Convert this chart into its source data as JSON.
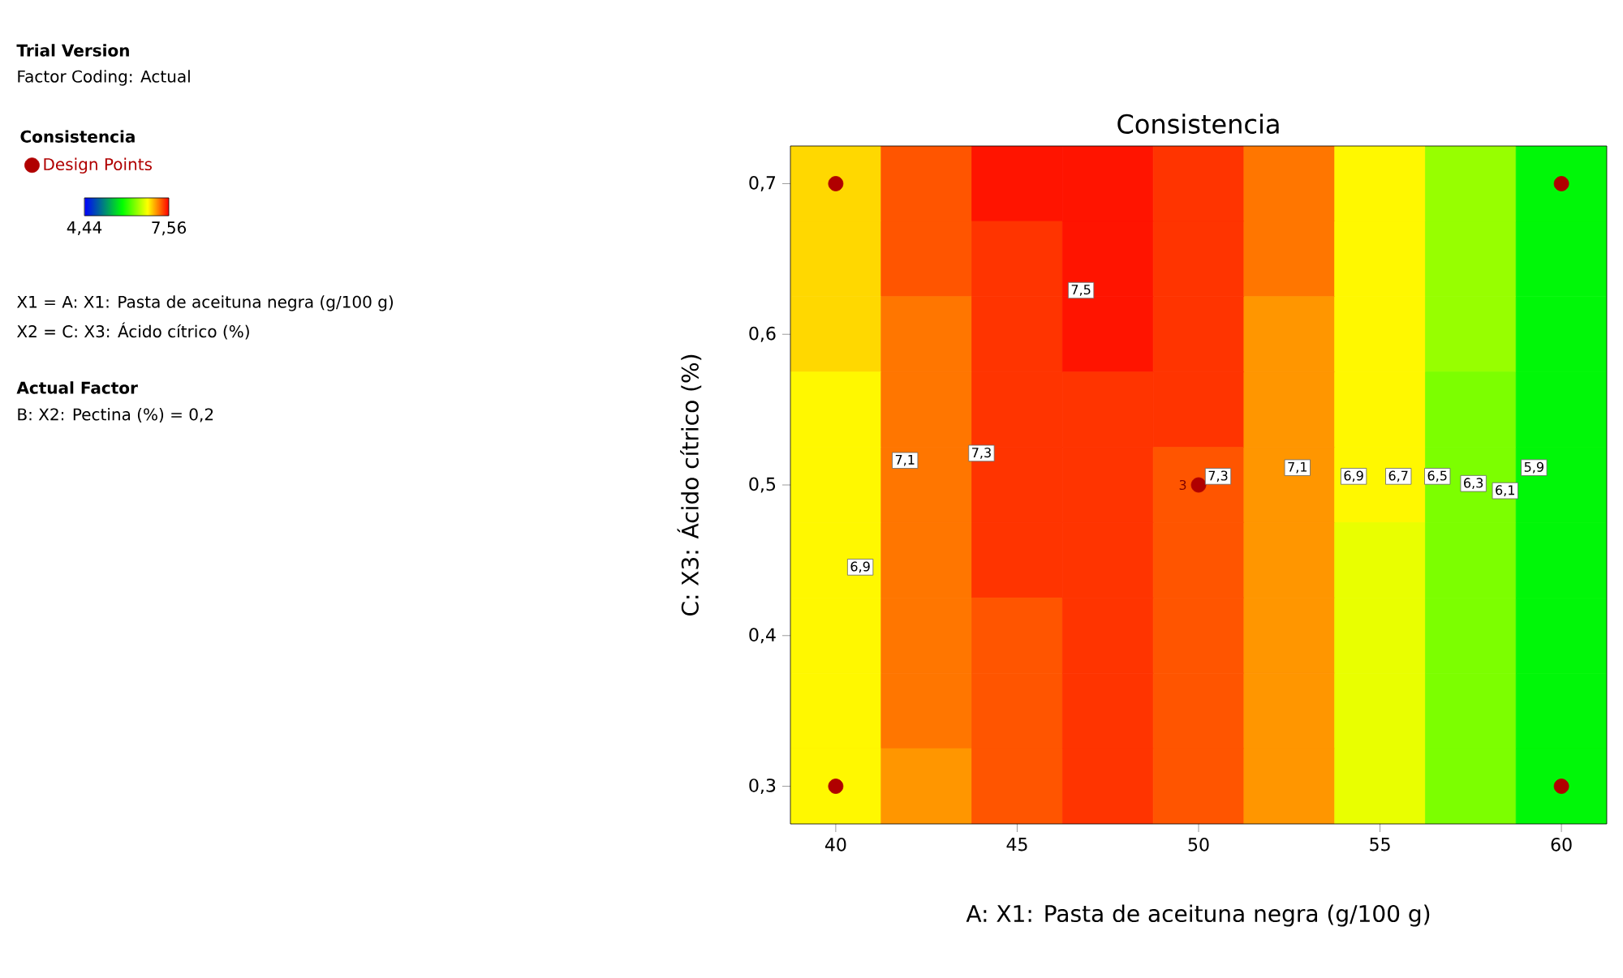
{
  "chart_data": {
    "type": "heatmap",
    "title": "Consistencia",
    "xlabel": "A: X1: Pasta de aceituna negra (g/100 g)",
    "ylabel": "C: X3: Ácido cítrico (%)",
    "legend_title": "Consistencia",
    "legend": "top left",
    "categories": [
      "40",
      null,
      "45",
      null,
      "50",
      null,
      "55",
      null,
      "60"
    ],
    "y_categories": [
      "0,7",
      null,
      "0,6",
      null,
      "0,5",
      null,
      "0,4",
      null,
      "0,3"
    ],
    "cells": [
      [
        6.9,
        7.3,
        7.5,
        7.5,
        7.4,
        7.2,
        6.8,
        6.4,
        5.8
      ],
      [
        6.9,
        7.3,
        7.4,
        7.5,
        7.4,
        7.2,
        6.8,
        6.4,
        5.8
      ],
      [
        6.9,
        7.2,
        7.4,
        7.5,
        7.4,
        7.1,
        6.8,
        6.4,
        5.8
      ],
      [
        6.8,
        7.2,
        7.4,
        7.4,
        7.4,
        7.1,
        6.8,
        6.3,
        5.8
      ],
      [
        6.8,
        7.2,
        7.4,
        7.4,
        7.3,
        7.1,
        6.8,
        6.3,
        5.8
      ],
      [
        6.8,
        7.2,
        7.4,
        7.4,
        7.3,
        7.1,
        6.7,
        6.3,
        5.8
      ],
      [
        6.8,
        7.2,
        7.3,
        7.4,
        7.3,
        7.1,
        6.7,
        6.3,
        5.8
      ],
      [
        6.8,
        7.2,
        7.3,
        7.4,
        7.3,
        7.1,
        6.7,
        6.3,
        5.8
      ],
      [
        6.8,
        7.1,
        7.3,
        7.4,
        7.3,
        7.1,
        6.7,
        6.3,
        5.8
      ]
    ],
    "clim": [
      4.44,
      7.56
    ],
    "cticks": [
      {
        "value": 4.44,
        "label": "4,44"
      },
      {
        "value": 7.56,
        "label": "7,56"
      }
    ],
    "series": [
      {
        "name": "Design Points",
        "type": "scatter",
        "color": "#b00000",
        "x": [
          "40",
          "40",
          "50",
          "60",
          "60"
        ],
        "values": [
          0,
          8,
          4,
          0,
          8
        ]
      }
    ],
    "annotations": [
      "Trial Version",
      "Factor Coding: Actual",
      "X1 = A: X1: Pasta de aceituna negra (g/100 g)",
      "X2 = C: X3: Ácido cítrico (%)",
      "Actual Factor",
      "B: X2: Pectina (%) = 0,2",
      {
        "text": "3",
        "x": "50",
        "y": "0,5"
      },
      "7,5",
      "7,1",
      "7,3",
      "6,9",
      "7,3",
      "7,1",
      "6,9",
      "6,7",
      "6,5",
      "6,3",
      "6,1",
      "5,9"
    ]
  }
}
